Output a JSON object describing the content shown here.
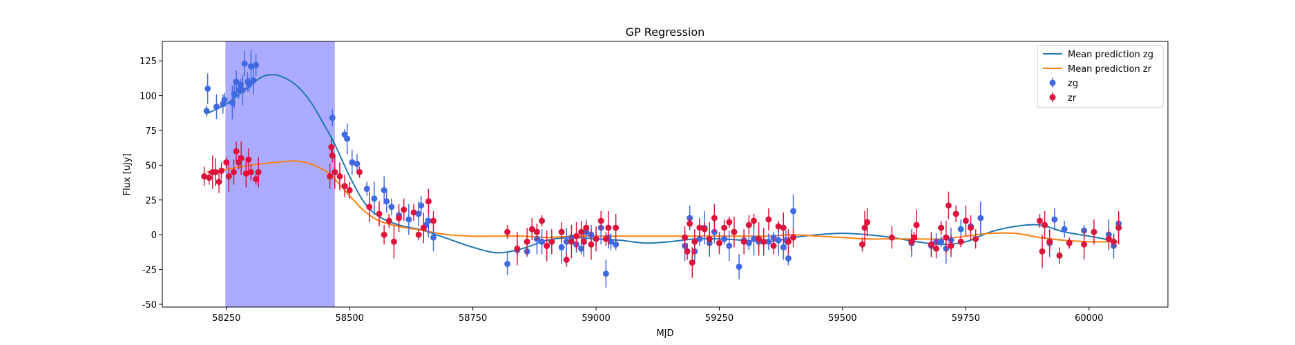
{
  "chart_data": {
    "type": "scatter",
    "title": "GP Regression",
    "xlabel": "MJD",
    "ylabel": "Flux [uJy]",
    "xlim": [
      58120,
      60160
    ],
    "ylim": [
      -52,
      139
    ],
    "xticks": [
      58250,
      58500,
      58750,
      59000,
      59250,
      59500,
      59750,
      60000
    ],
    "yticks": [
      -50,
      -25,
      0,
      25,
      50,
      75,
      100,
      125
    ],
    "grid": false,
    "legend": "upper right",
    "shaded_region": {
      "x0": 58248,
      "x1": 58470,
      "color": "#a6a6ff"
    },
    "lines": [
      {
        "name": "Mean prediction zg",
        "color": "#1f77b4",
        "x": [
          58210,
          58250,
          58290,
          58320,
          58340,
          58360,
          58390,
          58420,
          58450,
          58470,
          58500,
          58530,
          58560,
          58600,
          58650,
          58700,
          58750,
          58800,
          58850,
          58900,
          58950,
          59000,
          59050,
          59100,
          59150,
          59200,
          59250,
          59300,
          59350,
          59400,
          59450,
          59500,
          59550,
          59600,
          59650,
          59700,
          59750,
          59800,
          59850,
          59900,
          59950,
          60000,
          60060
        ],
        "y": [
          87,
          94,
          105,
          113,
          115,
          114,
          108,
          96,
          78,
          65,
          42,
          23,
          13,
          7,
          3,
          -3,
          -9,
          -13,
          -10,
          -4,
          -2,
          -3,
          -4,
          -6,
          -5,
          -3,
          -3,
          -4,
          -5,
          -2,
          0,
          1,
          0,
          -2,
          -5,
          -7,
          -5,
          2,
          6,
          7,
          2,
          -1,
          -5
        ]
      },
      {
        "name": "Mean prediction zr",
        "color": "#ff7f0e",
        "x": [
          58210,
          58250,
          58300,
          58350,
          58390,
          58420,
          58450,
          58470,
          58500,
          58530,
          58560,
          58600,
          58650,
          58700,
          58750,
          58800,
          58850,
          58900,
          58950,
          59000,
          59050,
          59100,
          59150,
          59200,
          59250,
          59300,
          59350,
          59400,
          59450,
          59500,
          59550,
          59600,
          59650,
          59700,
          59750,
          59800,
          59850,
          59900,
          59950,
          60000,
          60060
        ],
        "y": [
          45,
          47,
          50,
          52,
          53,
          51,
          46,
          40,
          28,
          17,
          10,
          6,
          3,
          0,
          -1,
          -1,
          -1,
          -2,
          -1,
          -1,
          -1,
          -1,
          -1,
          -1,
          -1,
          -1,
          -1,
          0,
          -1,
          -2,
          -3,
          -3,
          -3,
          -3,
          -1,
          1,
          1,
          -2,
          -4,
          -5,
          -5
        ]
      }
    ],
    "series": [
      {
        "name": "zg",
        "color": "#4169e1",
        "x": [
          58210,
          58212,
          58230,
          58243,
          58246,
          58262,
          58266,
          58270,
          58275,
          58279,
          58283,
          58287,
          58293,
          58296,
          58300,
          58305,
          58310,
          58465,
          58490,
          58495,
          58505,
          58515,
          58535,
          58550,
          58570,
          58575,
          58585,
          58600,
          58620,
          58640,
          58645,
          58655,
          58660,
          58670,
          58820,
          58840,
          58860,
          58880,
          58890,
          58900,
          58910,
          58930,
          58940,
          58950,
          58960,
          58970,
          58975,
          58980,
          58990,
          59000,
          59010,
          59020,
          59025,
          59030,
          59040,
          59180,
          59190,
          59200,
          59210,
          59220,
          59230,
          59240,
          59250,
          59260,
          59270,
          59290,
          59300,
          59310,
          59320,
          59330,
          59340,
          59350,
          59360,
          59370,
          59380,
          59385,
          59390,
          59400,
          59640,
          59680,
          59690,
          59700,
          59710,
          59720,
          59740,
          59760,
          59780,
          59920,
          59930,
          59950,
          59990,
          60040,
          60050,
          60060
        ],
        "y": [
          89,
          105,
          92,
          94,
          97,
          95,
          101,
          110,
          104,
          108,
          104,
          123,
          110,
          108,
          121,
          111,
          122,
          84,
          72,
          69,
          52,
          51,
          33,
          26,
          32,
          24,
          20,
          14,
          11,
          15,
          21,
          7,
          10,
          -2,
          -21,
          -11,
          -12,
          -3,
          -5,
          -8,
          -5,
          -9,
          -5,
          -2,
          -7,
          -10,
          -5,
          2,
          0,
          -3,
          5,
          -28,
          -2,
          -5,
          -7,
          -8,
          12,
          -12,
          -3,
          5,
          -6,
          2,
          -6,
          -3,
          -8,
          -23,
          -4,
          -6,
          -3,
          -5,
          -5,
          -5,
          -2,
          -4,
          -9,
          -4,
          -17,
          17,
          -6,
          -8,
          -5,
          -5,
          -10,
          -4,
          4,
          6,
          12,
          -6,
          11,
          4,
          3,
          0,
          -8,
          8
        ]
      },
      {
        "name": "zr",
        "color": "#dc143c",
        "x": [
          58205,
          58215,
          58222,
          58228,
          58235,
          58240,
          58250,
          58255,
          58265,
          58270,
          58275,
          58280,
          58290,
          58295,
          58300,
          58310,
          58315,
          58460,
          58463,
          58465,
          58470,
          58480,
          58490,
          58500,
          58520,
          58540,
          58560,
          58570,
          58580,
          58590,
          58600,
          58610,
          58630,
          58640,
          58650,
          58660,
          58670,
          58820,
          58840,
          58860,
          58870,
          58880,
          58890,
          58900,
          58910,
          58930,
          58940,
          58950,
          58960,
          58970,
          58975,
          58980,
          58990,
          59000,
          59010,
          59020,
          59025,
          59040,
          59180,
          59185,
          59190,
          59195,
          59200,
          59210,
          59220,
          59230,
          59240,
          59250,
          59260,
          59270,
          59280,
          59300,
          59310,
          59320,
          59330,
          59340,
          59350,
          59360,
          59370,
          59380,
          59390,
          59400,
          59540,
          59545,
          59550,
          59600,
          59640,
          59645,
          59650,
          59680,
          59690,
          59700,
          59710,
          59715,
          59720,
          59730,
          59740,
          59750,
          59760,
          59770,
          59900,
          59905,
          59910,
          59920,
          59940,
          59960,
          59990,
          60010,
          60040,
          60050,
          60060
        ],
        "y": [
          42,
          41,
          45,
          45,
          38,
          46,
          52,
          42,
          45,
          60,
          52,
          55,
          44,
          54,
          45,
          40,
          45,
          42,
          63,
          57,
          45,
          42,
          35,
          32,
          45,
          20,
          15,
          0,
          10,
          -5,
          12,
          18,
          16,
          0,
          5,
          24,
          10,
          2,
          -10,
          -5,
          4,
          2,
          10,
          -8,
          -5,
          2,
          -18,
          -5,
          -1,
          2,
          -5,
          5,
          -7,
          -3,
          10,
          -3,
          5,
          5,
          -2,
          -12,
          8,
          -20,
          -5,
          5,
          4,
          -3,
          12,
          -6,
          5,
          9,
          2,
          -5,
          7,
          10,
          -3,
          -5,
          11,
          -8,
          6,
          5,
          -5,
          -2,
          -7,
          5,
          9,
          -2,
          -5,
          -2,
          7,
          -7,
          -10,
          5,
          -2,
          21,
          -8,
          15,
          -5,
          10,
          5,
          -3,
          10,
          -12,
          7,
          -5,
          -15,
          -6,
          -7,
          2,
          -3,
          -5,
          5
        ]
      }
    ]
  }
}
